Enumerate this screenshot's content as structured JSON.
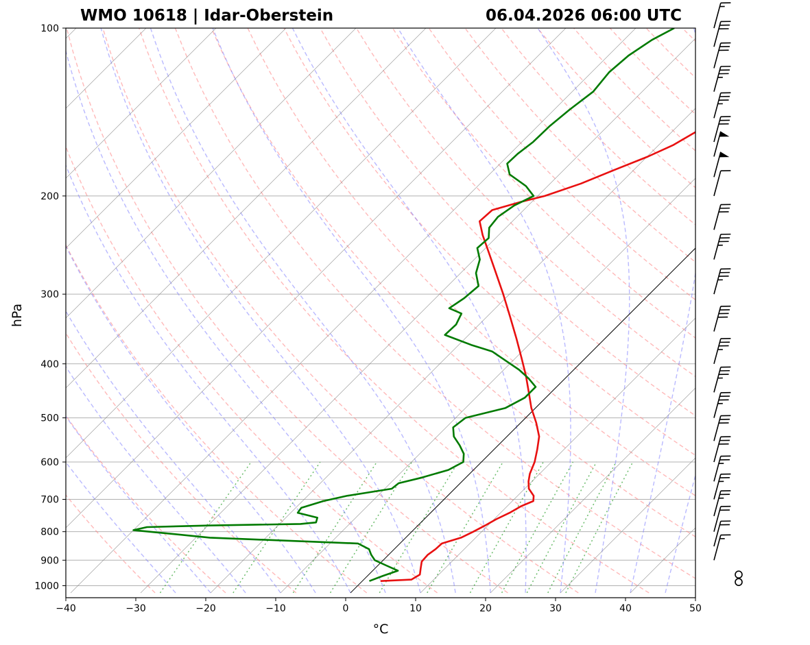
{
  "header": {
    "station": "WMO 10618 | Idar-Oberstein",
    "datetime": "06.04.2026 06:00 UTC"
  },
  "chart_data": {
    "type": "line",
    "chart_kind": "skew-T log-p diagram",
    "xlabel": "°C",
    "ylabel": "hPa",
    "xlim": [
      -40,
      50
    ],
    "ylim": [
      1030,
      100
    ],
    "y_scale": "log",
    "x_ticks": [
      -40,
      -30,
      -20,
      -10,
      0,
      10,
      20,
      30,
      40,
      50
    ],
    "x_tick_labels": [
      "−40",
      "−30",
      "−20",
      "−10",
      "0",
      "10",
      "20",
      "30",
      "40",
      "50"
    ],
    "y_ticks": [
      100,
      200,
      300,
      400,
      500,
      600,
      700,
      800,
      900,
      1000
    ],
    "y_tick_labels": [
      "100",
      "200",
      "300",
      "400",
      "500",
      "600",
      "700",
      "800",
      "900",
      "1000"
    ],
    "grid": true,
    "colors": {
      "temperature": "#e81010",
      "dewpoint": "#007a00",
      "isotherm": "#808080",
      "dry_adiabat": "#ff8080",
      "moist_adiabat": "#8080ff",
      "mixing_ratio": "#2ca02c",
      "isobar": "#b0b0b0"
    },
    "series": [
      {
        "role": "temperature",
        "points": [
          [
            981,
            2.6
          ],
          [
            975,
            6.8
          ],
          [
            955,
            7.3
          ],
          [
            930,
            6.5
          ],
          [
            905,
            5.7
          ],
          [
            880,
            5.6
          ],
          [
            860,
            5.9
          ],
          [
            840,
            6.0
          ],
          [
            820,
            7.9
          ],
          [
            800,
            8.8
          ],
          [
            780,
            9.6
          ],
          [
            760,
            10.3
          ],
          [
            740,
            11.3
          ],
          [
            720,
            12.0
          ],
          [
            705,
            13.0
          ],
          [
            690,
            12.3
          ],
          [
            670,
            10.6
          ],
          [
            650,
            9.5
          ],
          [
            630,
            8.6
          ],
          [
            600,
            7.6
          ],
          [
            570,
            6.2
          ],
          [
            540,
            4.6
          ],
          [
            510,
            2.2
          ],
          [
            480,
            -0.6
          ],
          [
            450,
            -3.2
          ],
          [
            420,
            -6.0
          ],
          [
            390,
            -9.2
          ],
          [
            360,
            -12.7
          ],
          [
            330,
            -16.6
          ],
          [
            300,
            -20.9
          ],
          [
            270,
            -25.8
          ],
          [
            250,
            -29.4
          ],
          [
            235,
            -32.3
          ],
          [
            222,
            -34.7
          ],
          [
            212,
            -34.5
          ],
          [
            205,
            -31.6
          ],
          [
            200,
            -29.0
          ],
          [
            190,
            -25.6
          ],
          [
            180,
            -22.9
          ],
          [
            170,
            -19.9
          ],
          [
            162,
            -17.9
          ],
          [
            155,
            -16.8
          ],
          [
            145,
            -15.2
          ],
          [
            135,
            -14.4
          ],
          [
            125,
            -13.0
          ],
          [
            115,
            -11.7
          ],
          [
            108,
            -11.0
          ],
          [
            100,
            -10.0
          ]
        ]
      },
      {
        "role": "dewpoint",
        "points": [
          [
            981,
            1.0
          ],
          [
            960,
            2.2
          ],
          [
            940,
            3.6
          ],
          [
            920,
            1.2
          ],
          [
            900,
            -1.2
          ],
          [
            880,
            -2.5
          ],
          [
            860,
            -3.6
          ],
          [
            840,
            -6.0
          ],
          [
            820,
            -28.0
          ],
          [
            805,
            -35.0
          ],
          [
            795,
            -40.0
          ],
          [
            785,
            -38.5
          ],
          [
            780,
            -30.0
          ],
          [
            775,
            -17.0
          ],
          [
            770,
            -15.0
          ],
          [
            755,
            -15.5
          ],
          [
            740,
            -19.0
          ],
          [
            725,
            -19.2
          ],
          [
            705,
            -17.0
          ],
          [
            690,
            -14.4
          ],
          [
            670,
            -9.0
          ],
          [
            655,
            -8.8
          ],
          [
            640,
            -6.3
          ],
          [
            620,
            -3.6
          ],
          [
            600,
            -2.6
          ],
          [
            580,
            -3.7
          ],
          [
            560,
            -5.5
          ],
          [
            540,
            -7.6
          ],
          [
            520,
            -9.0
          ],
          [
            500,
            -8.6
          ],
          [
            480,
            -4.3
          ],
          [
            460,
            -3.0
          ],
          [
            440,
            -3.0
          ],
          [
            425,
            -5.2
          ],
          [
            410,
            -7.8
          ],
          [
            395,
            -11.0
          ],
          [
            380,
            -14.3
          ],
          [
            370,
            -18.2
          ],
          [
            355,
            -23.4
          ],
          [
            340,
            -23.3
          ],
          [
            325,
            -24.1
          ],
          [
            318,
            -26.6
          ],
          [
            305,
            -25.9
          ],
          [
            290,
            -25.6
          ],
          [
            275,
            -27.8
          ],
          [
            260,
            -29.2
          ],
          [
            248,
            -31.2
          ],
          [
            238,
            -31.0
          ],
          [
            228,
            -32.4
          ],
          [
            218,
            -32.7
          ],
          [
            208,
            -32.0
          ],
          [
            200,
            -30.6
          ],
          [
            192,
            -33.1
          ],
          [
            183,
            -37.1
          ],
          [
            175,
            -39.0
          ],
          [
            168,
            -38.9
          ],
          [
            160,
            -38.4
          ],
          [
            150,
            -38.3
          ],
          [
            140,
            -37.8
          ],
          [
            130,
            -37.0
          ],
          [
            120,
            -37.5
          ],
          [
            112,
            -37.1
          ],
          [
            105,
            -36.0
          ],
          [
            100,
            -34.5
          ]
        ]
      }
    ],
    "wind_barbs": [
      {
        "p": 985,
        "speed_kt": 0
      },
      {
        "p": 955,
        "speed_kt": 0
      },
      {
        "p": 900,
        "speed_kt": 15
      },
      {
        "p": 850,
        "speed_kt": 20
      },
      {
        "p": 800,
        "speed_kt": 20
      },
      {
        "p": 750,
        "speed_kt": 25
      },
      {
        "p": 700,
        "speed_kt": 25
      },
      {
        "p": 650,
        "speed_kt": 25
      },
      {
        "p": 600,
        "speed_kt": 30
      },
      {
        "p": 550,
        "speed_kt": 30
      },
      {
        "p": 500,
        "speed_kt": 35
      },
      {
        "p": 450,
        "speed_kt": 35
      },
      {
        "p": 400,
        "speed_kt": 35
      },
      {
        "p": 350,
        "speed_kt": 40
      },
      {
        "p": 300,
        "speed_kt": 35
      },
      {
        "p": 260,
        "speed_kt": 35
      },
      {
        "p": 230,
        "speed_kt": 30
      },
      {
        "p": 200,
        "speed_kt": 10
      },
      {
        "p": 185,
        "speed_kt": 50
      },
      {
        "p": 170,
        "speed_kt": 50
      },
      {
        "p": 160,
        "speed_kt": 30
      },
      {
        "p": 145,
        "speed_kt": 35
      },
      {
        "p": 130,
        "speed_kt": 35
      },
      {
        "p": 118,
        "speed_kt": 30
      },
      {
        "p": 108,
        "speed_kt": 30
      },
      {
        "p": 100,
        "speed_kt": 15
      }
    ]
  }
}
